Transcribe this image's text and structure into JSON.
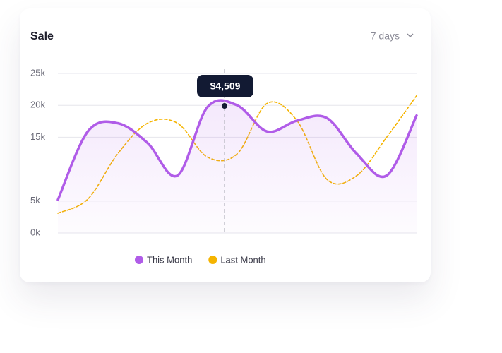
{
  "chart_data": {
    "type": "line",
    "title": "Sale",
    "period": "7 days",
    "annotation": "$4,509",
    "categories": [
      null,
      null,
      null,
      null,
      null,
      null,
      null,
      null,
      null,
      null,
      null,
      null,
      null
    ],
    "series": [
      {
        "name": "This Month",
        "color": "#b05ce8",
        "values": [
          5.2,
          15.9,
          17.2,
          14.1,
          9.0,
          19.7,
          20.0,
          15.9,
          17.6,
          18.0,
          12.4,
          9.0,
          18.4
        ]
      },
      {
        "name": "Last Month",
        "color": "#f5b400",
        "values": [
          3.1,
          5.3,
          12.4,
          17.2,
          17.2,
          11.9,
          12.4,
          20.3,
          17.6,
          8.4,
          9.0,
          15.0,
          21.5
        ]
      }
    ],
    "ylim": [
      0,
      25
    ],
    "yticks": [
      {
        "value": 0,
        "label": "0k"
      },
      {
        "value": 5,
        "label": "5k"
      },
      {
        "value": 15,
        "label": "15k"
      },
      {
        "value": 20,
        "label": "20k"
      },
      {
        "value": 25,
        "label": "25k"
      }
    ],
    "grid": true
  }
}
